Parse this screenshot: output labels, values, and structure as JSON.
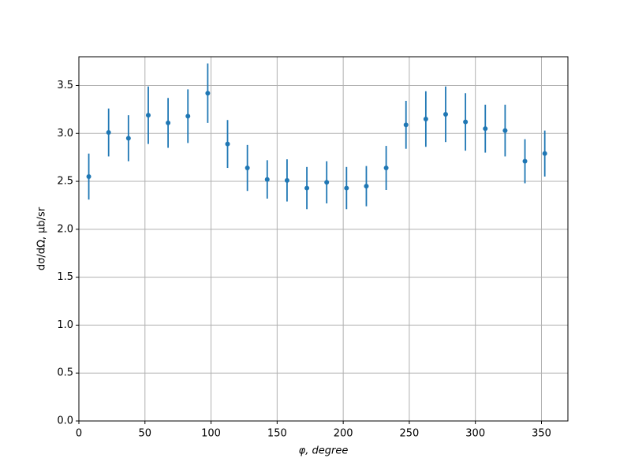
{
  "chart_data": {
    "type": "errorbar",
    "xlabel": "φ, degree",
    "ylabel": "dσ/dΩ, μb/sr",
    "color": "#1f77b4",
    "grid": true,
    "xlim": [
      0,
      370
    ],
    "ylim": [
      0,
      3.8
    ],
    "xticks": [
      0,
      50,
      100,
      150,
      200,
      250,
      300,
      350
    ],
    "yticks": [
      {
        "value": 0,
        "label": "0.0"
      },
      0.5,
      {
        "value": 1,
        "label": "1.0"
      },
      1.5,
      {
        "value": 2,
        "label": "2.0"
      },
      2.5,
      {
        "value": 3,
        "label": "3.0"
      },
      3.5
    ],
    "x": [
      7.5,
      22.5,
      37.5,
      52.5,
      67.5,
      82.5,
      97.5,
      112.5,
      127.5,
      142.5,
      157.5,
      172.5,
      187.5,
      202.5,
      217.5,
      232.5,
      247.5,
      262.5,
      277.5,
      292.5,
      307.5,
      322.5,
      337.5,
      352.5
    ],
    "values": [
      2.55,
      3.01,
      2.95,
      3.19,
      3.11,
      3.18,
      3.42,
      2.89,
      2.64,
      2.52,
      2.51,
      2.43,
      2.49,
      2.43,
      2.45,
      2.64,
      3.09,
      3.15,
      3.2,
      3.12,
      3.05,
      3.03,
      2.71,
      2.79
    ],
    "errors": [
      0.24,
      0.25,
      0.24,
      0.3,
      0.26,
      0.28,
      0.31,
      0.25,
      0.24,
      0.2,
      0.22,
      0.22,
      0.22,
      0.22,
      0.21,
      0.23,
      0.25,
      0.29,
      0.29,
      0.3,
      0.25,
      0.27,
      0.23,
      0.24
    ]
  }
}
